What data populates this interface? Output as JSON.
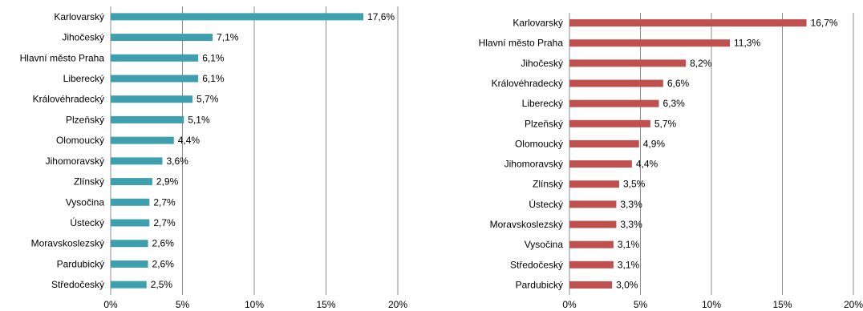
{
  "chart_data": [
    {
      "type": "bar",
      "orientation": "horizontal",
      "title": "",
      "xlabel": "",
      "ylabel": "",
      "xlim": [
        0,
        20
      ],
      "x_ticks": [
        "0%",
        "5%",
        "10%",
        "15%",
        "20%"
      ],
      "grid": "vertical",
      "color": "#3ea0ae",
      "categories": [
        "Karlovarský",
        "Jihočeský",
        "Hlavní město Praha",
        "Liberecký",
        "Královéhradecký",
        "Plzeňský",
        "Olomoucký",
        "Jihomoravský",
        "Zlínský",
        "Vysočina",
        "Ústecký",
        "Moravskoslezský",
        "Pardubický",
        "Středočeský"
      ],
      "values": [
        17.6,
        7.1,
        6.1,
        6.1,
        5.7,
        5.1,
        4.4,
        3.6,
        2.9,
        2.7,
        2.7,
        2.6,
        2.6,
        2.5
      ],
      "value_labels": [
        "17,6%",
        "7,1%",
        "6,1%",
        "6,1%",
        "5,7%",
        "5,1%",
        "4,4%",
        "3,6%",
        "2,9%",
        "2,7%",
        "2,7%",
        "2,6%",
        "2,6%",
        "2,5%"
      ]
    },
    {
      "type": "bar",
      "orientation": "horizontal",
      "title": "",
      "xlabel": "",
      "ylabel": "",
      "xlim": [
        0,
        20
      ],
      "x_ticks": [
        "0%",
        "5%",
        "10%",
        "15%",
        "20%"
      ],
      "grid": "vertical",
      "color": "#c0504d",
      "categories": [
        "Karlovarský",
        "Hlavní město Praha",
        "Jihočeský",
        "Královéhradecký",
        "Liberecký",
        "Plzeňský",
        "Olomoucký",
        "Jihomoravský",
        "Zlínský",
        "Ústecký",
        "Moravskoslezský",
        "Vysočina",
        "Středočeský",
        "Pardubický"
      ],
      "values": [
        16.7,
        11.3,
        8.2,
        6.6,
        6.3,
        5.7,
        4.9,
        4.4,
        3.5,
        3.3,
        3.3,
        3.1,
        3.1,
        3.0
      ],
      "value_labels": [
        "16,7%",
        "11,3%",
        "8,2%",
        "6,6%",
        "6,3%",
        "5,7%",
        "4,9%",
        "4,4%",
        "3,5%",
        "3,3%",
        "3,3%",
        "3,1%",
        "3,1%",
        "3,0%"
      ]
    }
  ]
}
